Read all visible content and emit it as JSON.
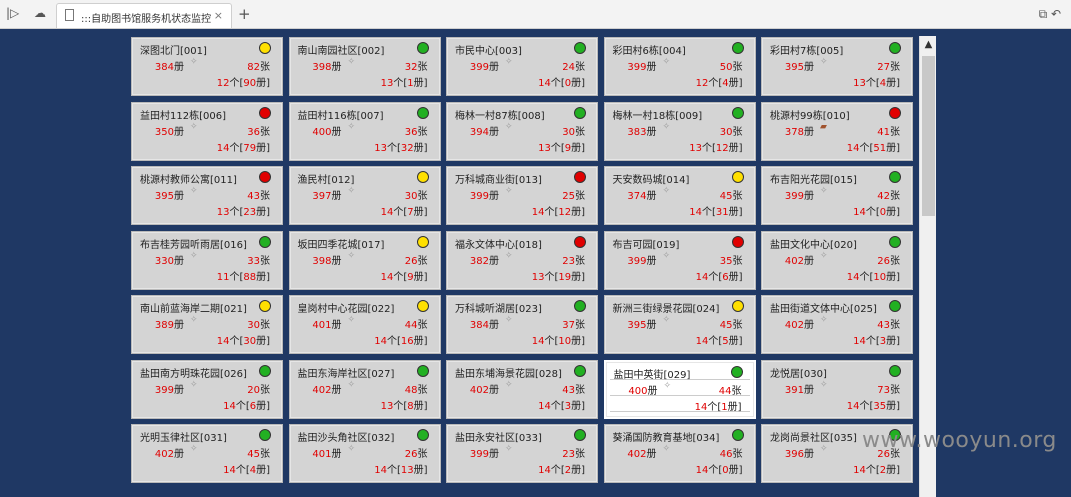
{
  "browser": {
    "tab_title": ":::自助图书馆服务机状态监控:",
    "tab_close": "×",
    "new_tab": "+"
  },
  "watermark": "www.wooyun.org",
  "units": {
    "books": "册",
    "sheets": "张",
    "count": "个",
    "bracket_open": "[",
    "bracket_close": "册]"
  },
  "colors": {
    "green": "#22b022",
    "yellow": "#ffe000",
    "red": "#e00000"
  },
  "stations": [
    {
      "name": "深图北门[001]",
      "status": "yellow",
      "books": "384",
      "sheets": "82",
      "count": "12",
      "sub": "90"
    },
    {
      "name": "南山南园社区[002]",
      "status": "green",
      "books": "398",
      "sheets": "32",
      "count": "13",
      "sub": "1"
    },
    {
      "name": "市民中心[003]",
      "status": "green",
      "books": "399",
      "sheets": "24",
      "count": "14",
      "sub": "0"
    },
    {
      "name": "彩田村6栋[004]",
      "status": "green",
      "books": "399",
      "sheets": "50",
      "count": "12",
      "sub": "4"
    },
    {
      "name": "彩田村7栋[005]",
      "status": "green",
      "books": "395",
      "sheets": "27",
      "count": "13",
      "sub": "4"
    },
    {
      "name": "益田村112栋[006]",
      "status": "red",
      "books": "350",
      "sheets": "36",
      "count": "14",
      "sub": "79"
    },
    {
      "name": "益田村116栋[007]",
      "status": "green",
      "books": "400",
      "sheets": "36",
      "count": "13",
      "sub": "32"
    },
    {
      "name": "梅林一村87栋[008]",
      "status": "green",
      "books": "394",
      "sheets": "30",
      "count": "13",
      "sub": "9"
    },
    {
      "name": "梅林一村18栋[009]",
      "status": "green",
      "books": "383",
      "sheets": "30",
      "count": "13",
      "sub": "12"
    },
    {
      "name": "桃源村99栋[010]",
      "status": "red",
      "books": "378",
      "sheets": "41",
      "count": "14",
      "sub": "51",
      "glyph": "book"
    },
    {
      "name": "桃源村教师公寓[011]",
      "status": "red",
      "books": "395",
      "sheets": "43",
      "count": "13",
      "sub": "23"
    },
    {
      "name": "渔民村[012]",
      "status": "yellow",
      "books": "397",
      "sheets": "30",
      "count": "14",
      "sub": "7"
    },
    {
      "name": "万科城商业街[013]",
      "status": "red",
      "books": "399",
      "sheets": "25",
      "count": "14",
      "sub": "12"
    },
    {
      "name": "天安数码城[014]",
      "status": "yellow",
      "books": "374",
      "sheets": "45",
      "count": "14",
      "sub": "31"
    },
    {
      "name": "布吉阳光花园[015]",
      "status": "green",
      "books": "399",
      "sheets": "42",
      "count": "14",
      "sub": "0"
    },
    {
      "name": "布吉桂芳园听雨居[016]",
      "status": "green",
      "books": "330",
      "sheets": "33",
      "count": "11",
      "sub": "88"
    },
    {
      "name": "坂田四季花城[017]",
      "status": "yellow",
      "books": "398",
      "sheets": "26",
      "count": "14",
      "sub": "9"
    },
    {
      "name": "福永文体中心[018]",
      "status": "red",
      "books": "382",
      "sheets": "23",
      "count": "13",
      "sub": "19"
    },
    {
      "name": "布吉可园[019]",
      "status": "red",
      "books": "399",
      "sheets": "35",
      "count": "14",
      "sub": "6"
    },
    {
      "name": "盐田文化中心[020]",
      "status": "green",
      "books": "402",
      "sheets": "26",
      "count": "14",
      "sub": "10"
    },
    {
      "name": "南山前蓝海岸二期[021]",
      "status": "yellow",
      "books": "389",
      "sheets": "30",
      "count": "14",
      "sub": "30"
    },
    {
      "name": "皇岗村中心花园[022]",
      "status": "yellow",
      "books": "401",
      "sheets": "44",
      "count": "14",
      "sub": "16"
    },
    {
      "name": "万科城听湖居[023]",
      "status": "green",
      "books": "384",
      "sheets": "37",
      "count": "14",
      "sub": "10"
    },
    {
      "name": "新洲三街绿景花园[024]",
      "status": "yellow",
      "books": "395",
      "sheets": "45",
      "count": "14",
      "sub": "5"
    },
    {
      "name": "盐田街道文体中心[025]",
      "status": "green",
      "books": "402",
      "sheets": "43",
      "count": "14",
      "sub": "3"
    },
    {
      "name": "盐田南方明珠花园[026]",
      "status": "green",
      "books": "399",
      "sheets": "20",
      "count": "14",
      "sub": "6"
    },
    {
      "name": "盐田东海岸社区[027]",
      "status": "green",
      "books": "402",
      "sheets": "48",
      "count": "13",
      "sub": "8"
    },
    {
      "name": "盐田东埔海景花园[028]",
      "status": "green",
      "books": "402",
      "sheets": "43",
      "count": "14",
      "sub": "3"
    },
    {
      "name": "盐田中英街[029]",
      "status": "green",
      "books": "400",
      "sheets": "44",
      "count": "14",
      "sub": "1",
      "selected": true
    },
    {
      "name": "龙悦居[030]",
      "status": "green",
      "books": "391",
      "sheets": "73",
      "count": "14",
      "sub": "35"
    },
    {
      "name": "光明玉律社区[031]",
      "status": "green",
      "books": "402",
      "sheets": "45",
      "count": "14",
      "sub": "4"
    },
    {
      "name": "盐田沙头角社区[032]",
      "status": "green",
      "books": "401",
      "sheets": "26",
      "count": "14",
      "sub": "13"
    },
    {
      "name": "盐田永安社区[033]",
      "status": "green",
      "books": "399",
      "sheets": "23",
      "count": "14",
      "sub": "2"
    },
    {
      "name": "葵涌国防教育基地[034]",
      "status": "green",
      "books": "402",
      "sheets": "46",
      "count": "14",
      "sub": "0"
    },
    {
      "name": "龙岗尚景社区[035]",
      "status": "green",
      "books": "396",
      "sheets": "26",
      "count": "14",
      "sub": "2"
    }
  ]
}
